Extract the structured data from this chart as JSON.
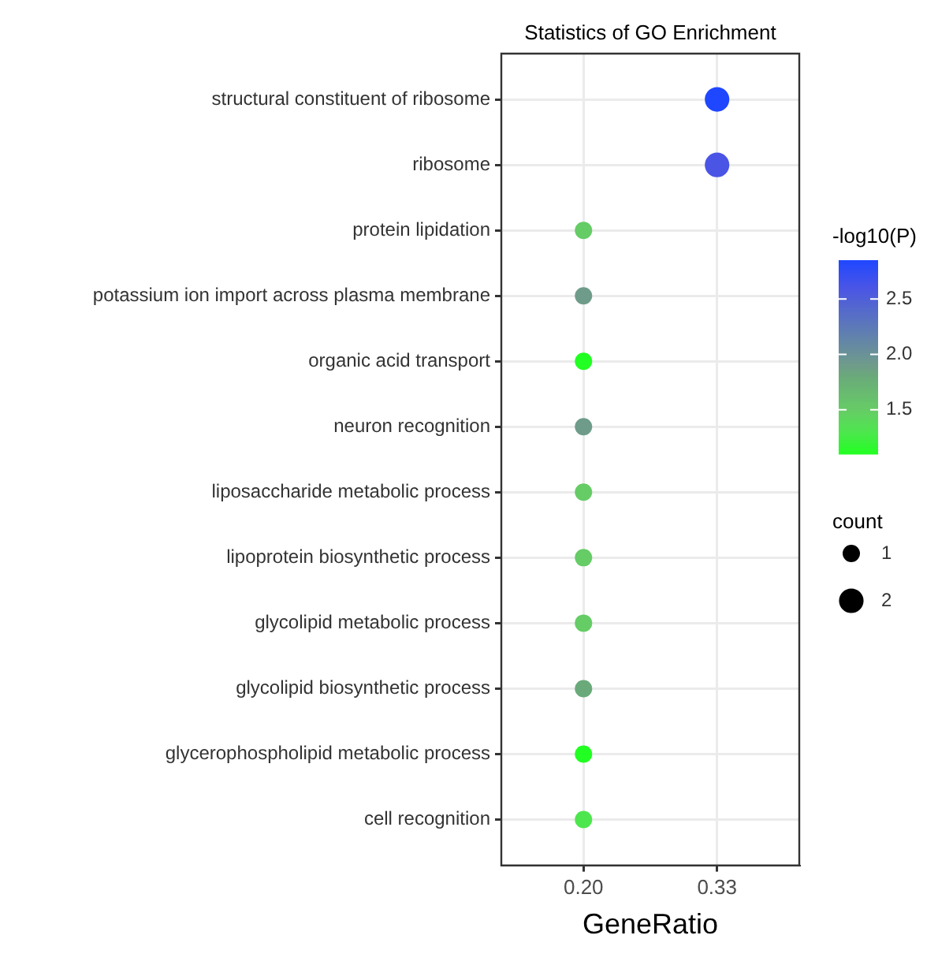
{
  "chart_data": {
    "type": "bubble",
    "orientation": "horizontal",
    "title": "Statistics of GO Enrichment",
    "xlabel": "GeneRatio",
    "clabel": "-log10(P)",
    "legend_title": "count",
    "categories": [
      "structural constituent of ribosome",
      "ribosome",
      "protein lipidation",
      "potassium ion import across plasma membrane",
      "organic acid transport",
      "neuron recognition",
      "liposaccharide metabolic process",
      "lipoprotein biosynthetic process",
      "glycolipid metabolic process",
      "glycolipid biosynthetic process",
      "glycerophospholipid metabolic process",
      "cell recognition"
    ],
    "values": [
      0.33,
      0.33,
      0.2,
      0.2,
      0.2,
      0.2,
      0.2,
      0.2,
      0.2,
      0.2,
      0.2,
      0.2
    ],
    "sizes": [
      2,
      2,
      1,
      1,
      1,
      1,
      1,
      1,
      1,
      1,
      1,
      1
    ],
    "size_legend": [
      1,
      2
    ],
    "cvalues": [
      2.85,
      2.6,
      1.5,
      1.9,
      1.1,
      1.9,
      1.5,
      1.5,
      1.5,
      1.8,
      1.1,
      1.3
    ],
    "colors": [
      "#1f47ff",
      "#4a55e6",
      "#66cc66",
      "#6f9c8a",
      "#22ff22",
      "#6f9c8a",
      "#66cc66",
      "#66cc66",
      "#66cc66",
      "#6aaa7a",
      "#22ff22",
      "#4ee64e"
    ],
    "clim": [
      1.1,
      2.85
    ],
    "cticks": [
      1.5,
      {
        "value": 2,
        "label": "2.0"
      },
      2.5
    ],
    "xlim": [
      0.12,
      0.41
    ],
    "xticks": [
      {
        "value": 0.2,
        "label": "0.20"
      },
      {
        "value": 0.33,
        "label": "0.33"
      }
    ],
    "grid": true
  }
}
